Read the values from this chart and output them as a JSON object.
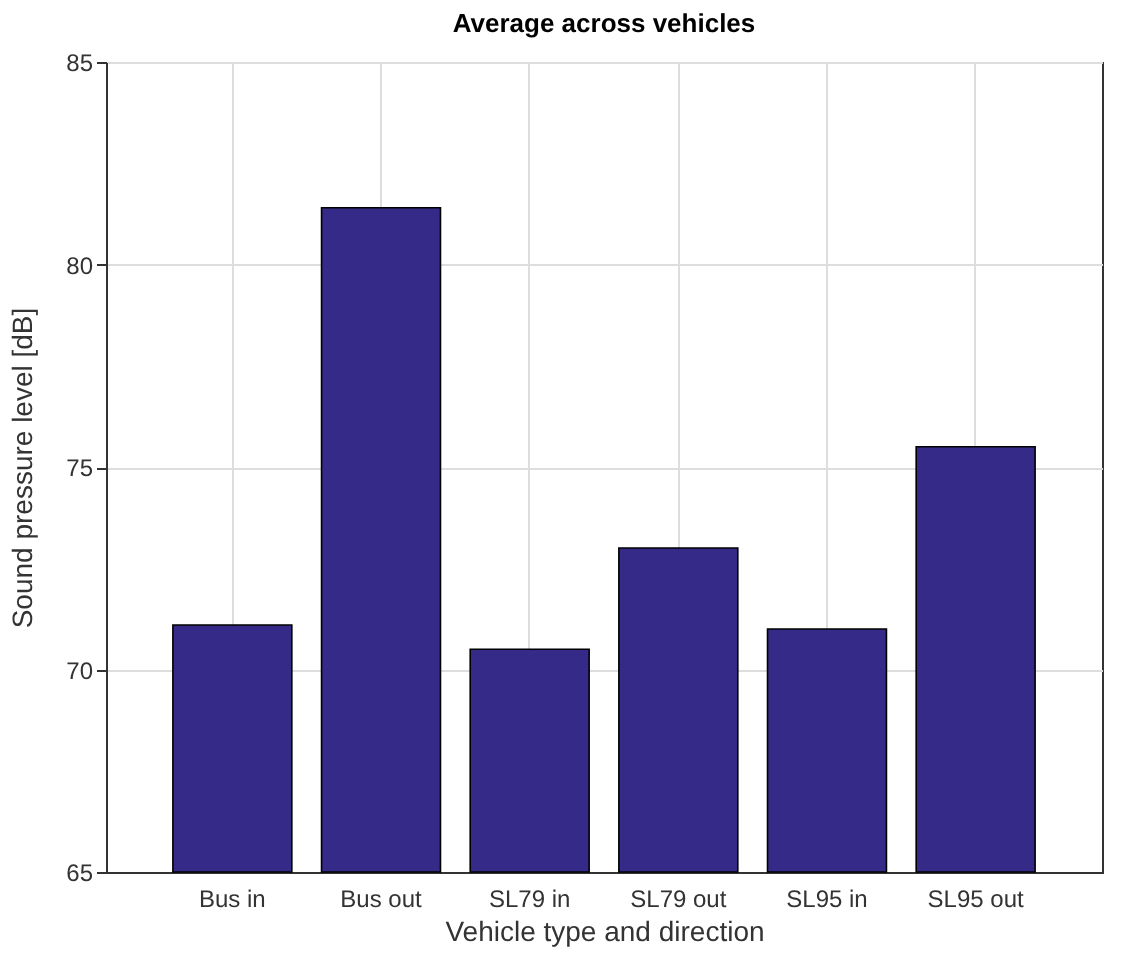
{
  "chart_data": {
    "type": "bar",
    "title": "Average across vehicles",
    "xlabel": "Vehicle type and direction",
    "ylabel": "Sound pressure level [dB]",
    "categories": [
      "Bus in",
      "Bus out",
      "SL79 in",
      "SL79 out",
      "SL95 in",
      "SL95 out"
    ],
    "values": [
      71.1,
      81.4,
      70.5,
      73.0,
      71.0,
      75.5
    ],
    "color": "#352a87",
    "ylim": [
      65,
      85
    ],
    "yticks": [
      65,
      70,
      75,
      80,
      85
    ],
    "grid": true
  }
}
